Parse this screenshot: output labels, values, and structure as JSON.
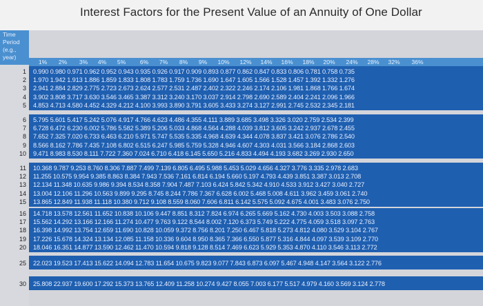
{
  "title": "Interest Factors for the Present Value of an Annuity of One Dollar",
  "period_label": [
    "Time",
    "Period",
    "(e.g.,",
    "year)"
  ],
  "rates": [
    "1%",
    "2%",
    "3%",
    "4%",
    "5%",
    "6%",
    "7%",
    "8%",
    "9%",
    "10%",
    "12%",
    "14%",
    "16%",
    "18%",
    "20%",
    "24%",
    "28%",
    "32%",
    "36%"
  ],
  "rows": [
    {
      "year": "1",
      "values": "0.990 0.980 0.971 0.962 0.952 0.943 0.935 0.926 0.917 0.909 0.893 0.877 0.862 0.847 0.833 0.806 0.781 0.758 0.735"
    },
    {
      "year": "2",
      "values": "1.970 1.942 1.913 1.886 1.859 1.833 1.808 1.783 1.759 1.736 1.690 1.647 1.605 1.566 1.528 1.457 1.392 1.332 1.276"
    },
    {
      "year": "3",
      "values": "2.941 2.884 2.829 2.775 2.723 2.673 2.624 2.577 2.531 2.487 2.402 2.322 2.246 2.174 2.106 1.981 1.868 1.766 1.674"
    },
    {
      "year": "4",
      "values": "3.902 3.808 3.717 3.630 3.546 3.465 3.387 3.312 3.240 3.170 3.037 2.914 2.798 2.690 2.589 2.404 2.241 2.096 1.966"
    },
    {
      "year": "5",
      "values": "4.853 4.713 4.580 4.452 4.329 4.212 4.100 3.993 3.890 3.791 3.605 3.433 3.274 3.127 2.991 2.745 2.532 2.345 2.181"
    },
    {
      "year": "6",
      "values": "5.795 5.601 5.417 5.242 5.076 4.917 4.766 4.623 4.486 4.355 4.111 3.889 3.685 3.498 3.326 3.020 2.759 2.534 2.399"
    },
    {
      "year": "7",
      "values": "6.728 6.472 6.230 6.002 5.786 5.582 5.389 5.206 5.033 4.868 4.564 4.288 4.039 3.812 3.605 3.242 2.937 2.678 2.455"
    },
    {
      "year": "8",
      "values": "7.652 7.325 7.020 6.733 6.463 6.210 5.971 5.747 5.535 5.335 4.968 4.639 4.344 4.078 3.837 3.421 3.076 2.786 2.540"
    },
    {
      "year": "9",
      "values": "8.566 8.162 7.786 7.435 7.108 6.802 6.515 6.247 5.985 5.759 5.328 4.946 4.607 4.303 4.031 3.566 3.184 2.868 2.603"
    },
    {
      "year": "10",
      "values": "9.471 8.983 8.530 8.111 7.722 7.360 7.024 6.710 6.418 6.145 5.650 5.216 4.833 4.494 4.193 3.682 3.269 2.930 2.650"
    },
    {
      "year": "11",
      "values": "10.368 9.787 9.253 8.760 8.306 7.887 7.499 7.139 6.805 6.495 5.988 5.453 5.029 4.656 4.327 3.776 3.335 2.978 2.683"
    },
    {
      "year": "12",
      "values": "11.255 10.575 9.954 9.385 8.863 8.384 7.943 7.536 7.161 6.814 6.194 5.660 5.197 4.793 4.439 3.851 3.387 3.013 2.708"
    },
    {
      "year": "13",
      "values": "12.134 11.348 10.635 9.986 9.394 8.534 8.358 7.904 7.487 7.103 6.424 5.842 5.342 4.910 4.533 3.912 3.427 3.040 2.727"
    },
    {
      "year": "14",
      "values": "13.004 12.106 11.296 10.563 9.899 9.295 8.745 8.244 7.786 7.367 6.628 6.002 5.468 5.008 4.611 3.962 3.459 3.061 2.740"
    },
    {
      "year": "15",
      "values": "13.865 12.849 11.938 11.118 10.380 9.712 9.108 8.559 8.060 7.606 6.811 6.142 5.575 5.092 4.675 4.001 3.483 3.076 2.750"
    },
    {
      "year": "16",
      "values": "14.718 13.578 12.561 11.652 10.838 10.106 9.447 8.851 8.312 7.824 6.974 6.265 5.669 5.162 4.730 4.003 3.503 3.088 2.758"
    },
    {
      "year": "17",
      "values": "15.562 14.292 13.166 12.166 11.274 10.477 9.763 9.122 8.544 8.002 7.120 6.373 5.749 5.222 4.775 4.059 3.518 3.097 2.763"
    },
    {
      "year": "18",
      "values": "16.398 14.992 13.754 12.659 11.690 10.828 10.059 9.372 8.756 8.201 7.250 6.467 5.818 5.273 4.812 4.080 3.529 3.104 2.767"
    },
    {
      "year": "19",
      "values": "17.226 15.678 14.324 13.134 12.085 11.158 10.336 9.604 8.950 8.365 7.366 6.550 5.877 5.316 4.844 4.097 3.539 3.109 2.770"
    },
    {
      "year": "20",
      "values": "18.046 16.351 14.877 13.590 12.462 11.470 10.594 9.818 9.128 8.514 7.469 6.623 5.929 5.353 4.870 4.110 3.546 3.113 2.772"
    },
    {
      "year": "25",
      "values": "22.023 19.523 17.413 15.622 14.094 12.783 11.654 10.675 9.823 9.077 7.843 6.873 6.097 5.467 4.948 4.147 3.564 3.122 2.776"
    },
    {
      "year": "30",
      "values": "25.808 22.937 19.600 17.292 15.373 13.765 12.409 11.258 10.274 9.427 8.055 7.003 6.177 5.517 4.979 4.160 3.569 3.124 2.778"
    }
  ],
  "colors": {
    "table_blue": "#1f5fb0",
    "header_blue": "#4a90d0",
    "cell_text": "#e6efff",
    "background": "#f2f2f2"
  }
}
